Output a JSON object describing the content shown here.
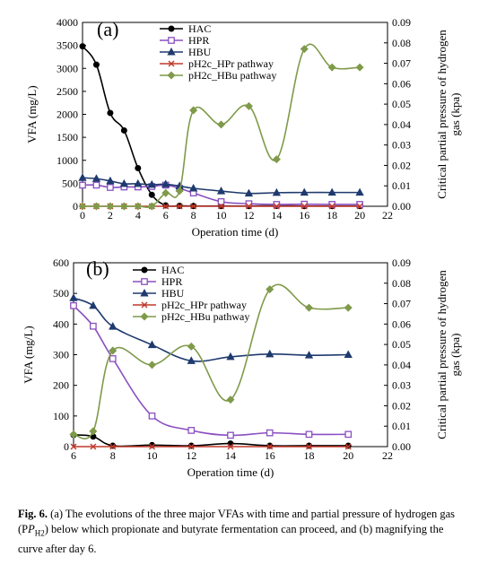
{
  "caption": {
    "label": "Fig. 6.",
    "text": "(a) The evolutions of the three major VFAs with time and partial pressure of hydrogen gas (P",
    "sub": "H2",
    "text2": ") below which propionate and butyrate fermentation can proceed, and (b) magnifying the curve after day 6."
  },
  "colors": {
    "HAC": "#000000",
    "HPR": "#8a4fc0",
    "HBU": "#1f3a6e",
    "pH2c_HPr": "#c0392b",
    "pH2c_HBu": "#7f9a4a"
  },
  "chart_data": [
    {
      "type": "line",
      "panel_label": "(a)",
      "xlabel": "Operation time (d)",
      "ylabel": "VFA (mg/L)",
      "y2label": "Critical partial pressure of hydrogen gas (kpa)",
      "xlim": [
        0,
        22
      ],
      "ylim": [
        0,
        4000
      ],
      "y2lim": [
        0,
        0.09
      ],
      "xticks": [
        0,
        2,
        4,
        6,
        8,
        10,
        12,
        14,
        16,
        18,
        20,
        22
      ],
      "yticks": [
        0,
        500,
        1000,
        1500,
        2000,
        2500,
        3000,
        3500,
        4000
      ],
      "y2ticks": [
        "0.00",
        "0.01",
        "0.02",
        "0.03",
        "0.04",
        "0.05",
        "0.06",
        "0.07",
        "0.08",
        "0.09"
      ],
      "legend_position": "top-center",
      "series": [
        {
          "name": "HAC",
          "key": "HAC",
          "axis": "left",
          "marker": "circle",
          "smooth": true,
          "x": [
            0,
            1,
            2,
            3,
            4,
            5,
            6,
            7,
            8,
            10,
            12,
            14,
            16,
            18,
            20
          ],
          "y": [
            3480,
            3080,
            2030,
            1650,
            830,
            250,
            20,
            10,
            5,
            5,
            5,
            10,
            5,
            5,
            5
          ]
        },
        {
          "name": "HPR",
          "key": "HPR",
          "axis": "left",
          "marker": "square",
          "smooth": true,
          "x": [
            0,
            1,
            2,
            3,
            4,
            5,
            6,
            7,
            8,
            10,
            12,
            14,
            16,
            18,
            20
          ],
          "y": [
            460,
            460,
            410,
            420,
            420,
            430,
            460,
            390,
            290,
            100,
            55,
            40,
            45,
            40,
            40
          ]
        },
        {
          "name": "HBU",
          "key": "HBU",
          "axis": "left",
          "marker": "triangle",
          "smooth": true,
          "x": [
            0,
            1,
            2,
            3,
            4,
            5,
            6,
            7,
            8,
            10,
            12,
            14,
            16,
            18,
            20
          ],
          "y": [
            620,
            600,
            550,
            490,
            490,
            470,
            480,
            440,
            390,
            330,
            280,
            295,
            300,
            300,
            300
          ]
        },
        {
          "name": "pH2c_HPr pathway",
          "key": "pH2c_HPr",
          "axis": "right",
          "marker": "x",
          "smooth": true,
          "x": [
            0,
            1,
            2,
            3,
            4,
            5,
            6,
            7,
            8,
            10,
            12,
            14,
            16,
            18,
            20
          ],
          "y": [
            0,
            0,
            0,
            0,
            0,
            0,
            0,
            0,
            0,
            0,
            0,
            0,
            0,
            0,
            0
          ]
        },
        {
          "name": "pH2c_HBu pathway",
          "key": "pH2c_HBu",
          "axis": "right",
          "marker": "diamond",
          "smooth": true,
          "x": [
            0,
            1,
            2,
            3,
            4,
            5,
            6,
            7,
            8,
            10,
            12,
            14,
            16,
            18,
            20
          ],
          "y": [
            0,
            0,
            0,
            0,
            0,
            0,
            0.0065,
            0.0075,
            0.047,
            0.04,
            0.049,
            0.023,
            0.077,
            0.068,
            0.068
          ]
        }
      ]
    },
    {
      "type": "line",
      "panel_label": "(b)",
      "xlabel": "Operation time (d)",
      "ylabel": "VFA (mg/L)",
      "y2label": "Critical partial pressure of hydrogen gas (kpa)",
      "xlim": [
        6,
        22
      ],
      "ylim": [
        0,
        600
      ],
      "y2lim": [
        0,
        0.09
      ],
      "xticks": [
        6,
        8,
        10,
        12,
        14,
        16,
        18,
        20,
        22
      ],
      "yticks": [
        0,
        100,
        200,
        300,
        400,
        500,
        600
      ],
      "y2ticks": [
        "0.00",
        "0.01",
        "0.02",
        "0.03",
        "0.04",
        "0.05",
        "0.06",
        "0.07",
        "0.08",
        "0.09"
      ],
      "legend_position": "top-center",
      "series": [
        {
          "name": "HAC",
          "key": "HAC",
          "axis": "left",
          "marker": "circle",
          "smooth": true,
          "x": [
            6,
            7,
            8,
            10,
            12,
            14,
            16,
            18,
            20
          ],
          "y": [
            38,
            33,
            3,
            5,
            3,
            10,
            3,
            3,
            3
          ]
        },
        {
          "name": "HPR",
          "key": "HPR",
          "axis": "left",
          "marker": "square",
          "smooth": true,
          "x": [
            6,
            7,
            8,
            10,
            12,
            14,
            16,
            18,
            20
          ],
          "y": [
            460,
            393,
            287,
            100,
            53,
            37,
            45,
            40,
            40
          ]
        },
        {
          "name": "HBU",
          "key": "HBU",
          "axis": "left",
          "marker": "triangle",
          "smooth": true,
          "x": [
            6,
            7,
            8,
            10,
            12,
            14,
            16,
            18,
            20
          ],
          "y": [
            485,
            460,
            392,
            332,
            280,
            293,
            302,
            298,
            300
          ]
        },
        {
          "name": "pH2c_HPr pathway",
          "key": "pH2c_HPr",
          "axis": "right",
          "marker": "x",
          "smooth": true,
          "x": [
            6,
            7,
            8,
            10,
            12,
            14,
            16,
            18,
            20
          ],
          "y": [
            0,
            0,
            0,
            0,
            0,
            0,
            0,
            0,
            0
          ]
        },
        {
          "name": "pH2c_HBu pathway",
          "key": "pH2c_HBu",
          "axis": "right",
          "marker": "diamond",
          "smooth": true,
          "x": [
            6,
            7,
            8,
            10,
            12,
            14,
            16,
            18,
            20
          ],
          "y": [
            0.006,
            0.0075,
            0.047,
            0.04,
            0.049,
            0.023,
            0.077,
            0.068,
            0.068
          ]
        }
      ]
    }
  ]
}
